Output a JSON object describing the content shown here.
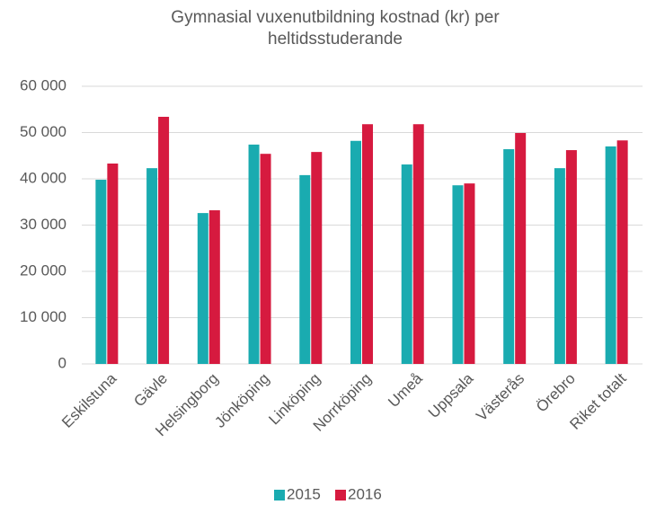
{
  "chart_data": {
    "type": "bar",
    "title": "Gymnasial vuxenutbildning kostnad (kr) per heltidsstuderande",
    "categories": [
      "Eskilstuna",
      "Gävle",
      "Helsingborg",
      "Jönköping",
      "Linköping",
      "Norrköping",
      "Umeå",
      "Uppsala",
      "Västerås",
      "Örebro",
      "Riket totalt"
    ],
    "series": [
      {
        "name": "2015",
        "color": "#1aabb0",
        "values": [
          39800,
          42300,
          32600,
          47400,
          40800,
          48200,
          43100,
          38600,
          46400,
          42300,
          47000
        ]
      },
      {
        "name": "2016",
        "color": "#d61a3f",
        "values": [
          43300,
          53400,
          33200,
          45400,
          45800,
          51800,
          51800,
          39000,
          49900,
          46200,
          48300
        ]
      }
    ],
    "ylim": [
      0,
      60000
    ],
    "yticks": [
      0,
      {
        "value": 10000,
        "label": "10 000"
      },
      {
        "value": 20000,
        "label": "20 000"
      },
      {
        "value": 30000,
        "label": "30 000"
      },
      {
        "value": 40000,
        "label": "40 000"
      },
      {
        "value": 50000,
        "label": "50 000"
      },
      {
        "value": 60000,
        "label": "60 000"
      }
    ],
    "grid": true,
    "legend": "bottom"
  }
}
